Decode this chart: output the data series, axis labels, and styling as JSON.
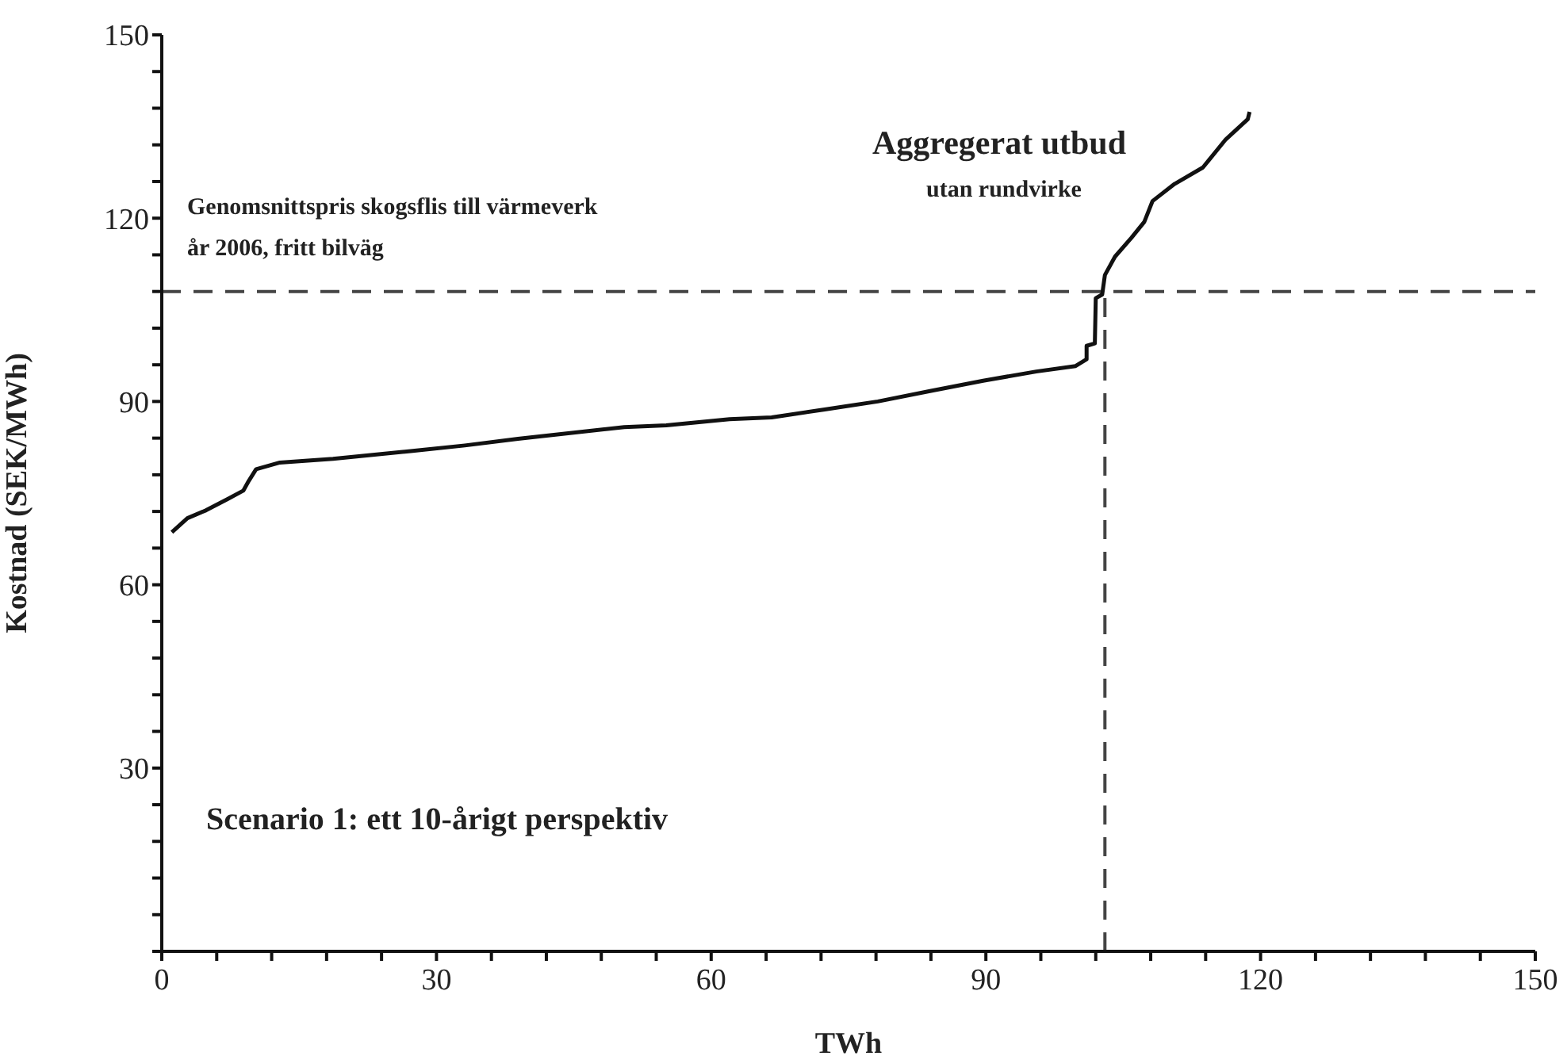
{
  "chart_data": {
    "type": "line",
    "xlabel": "TWh",
    "ylabel": "Kostnad (SEK/MWh)",
    "annotations": [
      "Aggregerat utbud",
      "utan rundvirke",
      "Genomsnittspris skogsflis till värmeverk\når 2006, fritt bilväg",
      "Scenario 1: ett 10-årigt perspektiv"
    ],
    "series": [
      {
        "color": "#111111",
        "x": [
          1.1,
          2.8,
          4.85,
          7.15,
          8.9,
          9.5,
          10.3,
          12.9,
          18.7,
          27.4,
          33.1,
          38.9,
          50.5,
          55.1,
          62.0,
          66.6,
          72.4,
          78.2,
          83.9,
          89.7,
          95.5,
          99.8,
          101.0,
          101.0,
          101.9,
          102.0,
          102.7,
          103.0,
          104.1,
          105.9,
          107.3,
          108.2,
          110.6,
          113.7,
          116.2,
          118.6,
          118.8
        ],
        "values": [
          68.6,
          70.9,
          72.2,
          74.0,
          75.4,
          77.0,
          78.9,
          80.0,
          80.6,
          81.9,
          82.8,
          83.9,
          85.8,
          86.1,
          87.1,
          87.4,
          88.7,
          90.0,
          91.7,
          93.4,
          94.9,
          95.8,
          96.9,
          99.1,
          99.5,
          106.9,
          107.5,
          110.7,
          113.7,
          116.8,
          119.4,
          122.8,
          125.6,
          128.3,
          132.9,
          136.2,
          137.4
        ]
      }
    ],
    "xlim": [
      0,
      150
    ],
    "xticks": [
      0,
      {
        "value": 6,
        "label": null
      },
      {
        "value": 12,
        "label": null
      },
      {
        "value": 18,
        "label": null
      },
      {
        "value": 24,
        "label": null
      },
      30,
      {
        "value": 36,
        "label": null
      },
      {
        "value": 42,
        "label": null
      },
      {
        "value": 48,
        "label": null
      },
      {
        "value": 54,
        "label": null
      },
      60,
      {
        "value": 66,
        "label": null
      },
      {
        "value": 72,
        "label": null
      },
      {
        "value": 78,
        "label": null
      },
      {
        "value": 84,
        "label": null
      },
      90,
      {
        "value": 96,
        "label": null
      },
      {
        "value": 102,
        "label": null
      },
      {
        "value": 108,
        "label": null
      },
      {
        "value": 114,
        "label": null
      },
      120,
      {
        "value": 126,
        "label": null
      },
      {
        "value": 132,
        "label": null
      },
      {
        "value": 138,
        "label": null
      },
      {
        "value": 144,
        "label": null
      },
      150
    ],
    "ylim": [
      0,
      150
    ],
    "yticks": [
      {
        "value": 0,
        "label": null
      },
      {
        "value": 6,
        "label": null
      },
      {
        "value": 12,
        "label": null
      },
      {
        "value": 18,
        "label": null
      },
      {
        "value": 24,
        "label": null
      },
      30,
      {
        "value": 36,
        "label": null
      },
      {
        "value": 42,
        "label": null
      },
      {
        "value": 48,
        "label": null
      },
      {
        "value": 54,
        "label": null
      },
      60,
      {
        "value": 66,
        "label": null
      },
      {
        "value": 72,
        "label": null
      },
      {
        "value": 78,
        "label": null
      },
      {
        "value": 84,
        "label": null
      },
      90,
      {
        "value": 96,
        "label": null
      },
      {
        "value": 102,
        "label": null
      },
      {
        "value": 108,
        "label": null
      },
      {
        "value": 114,
        "label": null
      },
      120,
      {
        "value": 126,
        "label": null
      },
      {
        "value": 132,
        "label": null
      },
      {
        "value": 138,
        "label": null
      },
      {
        "value": 144,
        "label": null
      },
      150
    ],
    "ref_lines": [
      {
        "axis": "y",
        "value": 108,
        "color": "#444444",
        "line_style": "dashed"
      },
      {
        "axis": "x",
        "value": 103,
        "color": "#444444",
        "line_style": "dashed"
      }
    ],
    "grid": false,
    "legend": false,
    "marker": "none",
    "line_style": "solid"
  }
}
